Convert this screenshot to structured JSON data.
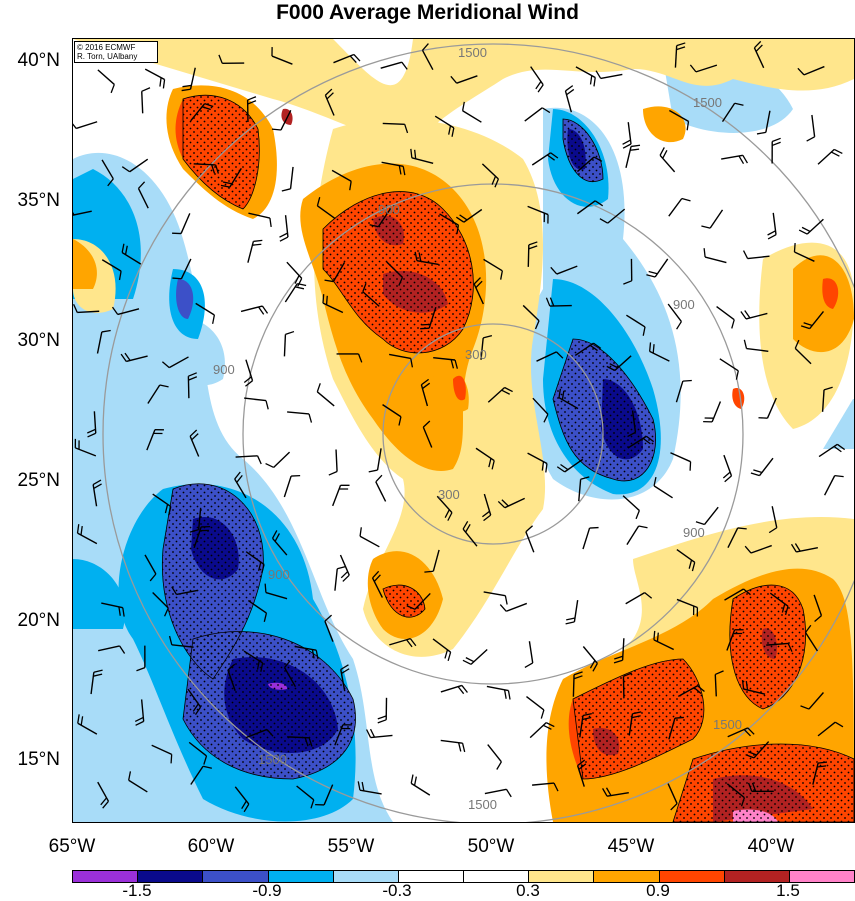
{
  "title": "F000 Average Meridional Wind",
  "credit": {
    "line1": "© 2016 ECMWF",
    "line2": "R. Torn, UAlbany"
  },
  "latitude_labels": [
    "40°N",
    "35°N",
    "30°N",
    "25°N",
    "20°N",
    "15°N"
  ],
  "longitude_labels": [
    "65°W",
    "60°W",
    "55°W",
    "50°W",
    "45°W",
    "40°W"
  ],
  "contour_labels": [
    "300",
    "300",
    "900",
    "900",
    "900",
    "900",
    "900",
    "1500",
    "1500",
    "1500",
    "1500",
    "1500"
  ],
  "colorbar": {
    "colors": [
      "#9b30d9",
      "#0a0a8c",
      "#3c50c8",
      "#00b0f0",
      "#a8dcf8",
      "#ffffff",
      "#ffffff",
      "#ffe68c",
      "#ffa500",
      "#ff4500",
      "#b22222",
      "#ff82c8"
    ],
    "labels": [
      "-1.5",
      "-0.9",
      "-0.3",
      "0.3",
      "0.9",
      "1.5"
    ]
  },
  "shading_colors": {
    "strong_neg": "#0a0a8c",
    "mid_neg": "#3c50c8",
    "neg": "#00b0f0",
    "weak_neg": "#a8dcf8",
    "weak_pos": "#ffe68c",
    "pos": "#ffa500",
    "mid_pos": "#ff4500",
    "strong_pos": "#b22222",
    "extreme_pos": "#ff82c8",
    "extreme_neg": "#9b30d9"
  }
}
